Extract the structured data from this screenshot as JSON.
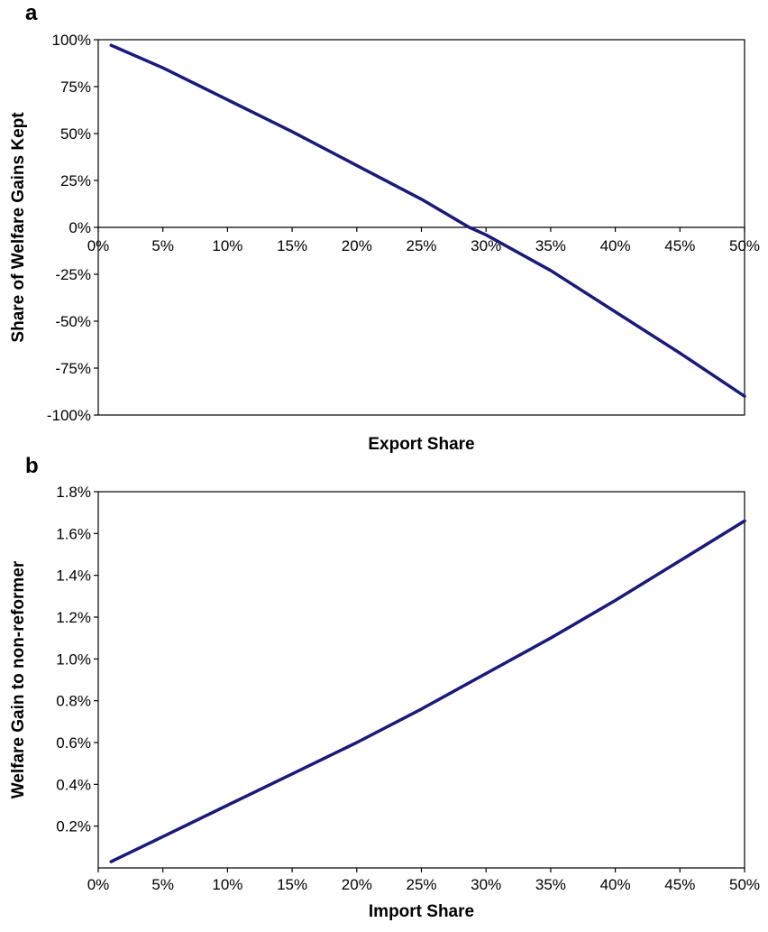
{
  "colors": {
    "series": "#1a1a7a",
    "axis": "#000000",
    "background": "#ffffff"
  },
  "chart_data": [
    {
      "panel_label": "a",
      "type": "line",
      "xlabel": "Export Share",
      "ylabel": "Share of Welfare Gains Kept",
      "xlim": [
        0,
        50
      ],
      "ylim": [
        -100,
        100
      ],
      "x_ticks": [
        0,
        5,
        10,
        15,
        20,
        25,
        30,
        35,
        40,
        45,
        50
      ],
      "x_tick_labels": [
        "0%",
        "5%",
        "10%",
        "15%",
        "20%",
        "25%",
        "30%",
        "35%",
        "40%",
        "45%",
        "50%"
      ],
      "y_ticks": [
        100,
        75,
        50,
        25,
        0,
        -25,
        -50,
        -75,
        -100
      ],
      "y_tick_labels": [
        "100%",
        "75%",
        "50%",
        "25%",
        "0%",
        "-25%",
        "-50%",
        "-75%",
        "-100%"
      ],
      "grid": false,
      "zero_line": true,
      "series": [
        {
          "x": [
            1,
            5,
            10,
            15,
            20,
            25,
            28.7,
            30,
            35,
            40,
            45,
            50
          ],
          "y": [
            97,
            85,
            68,
            51,
            33,
            15,
            0,
            -4,
            -23,
            -45,
            -67,
            -90
          ]
        }
      ]
    },
    {
      "panel_label": "b",
      "type": "line",
      "xlabel": "Import Share",
      "ylabel": "Welfare Gain to non-reformer",
      "xlim": [
        0,
        50
      ],
      "ylim": [
        0,
        1.8
      ],
      "x_ticks": [
        0,
        5,
        10,
        15,
        20,
        25,
        30,
        35,
        40,
        45,
        50
      ],
      "x_tick_labels": [
        "0%",
        "5%",
        "10%",
        "15%",
        "20%",
        "25%",
        "30%",
        "35%",
        "40%",
        "45%",
        "50%"
      ],
      "y_ticks": [
        1.8,
        1.6,
        1.4,
        1.2,
        1.0,
        0.8,
        0.6,
        0.4,
        0.2
      ],
      "y_tick_labels": [
        "1.8%",
        "1.6%",
        "1.4%",
        "1.2%",
        "1.0%",
        "0.8%",
        "0.6%",
        "0.4%",
        "0.2%"
      ],
      "grid": false,
      "zero_line": false,
      "series": [
        {
          "x": [
            1,
            5,
            10,
            15,
            20,
            25,
            30,
            35,
            40,
            45,
            50
          ],
          "y": [
            0.03,
            0.15,
            0.3,
            0.45,
            0.6,
            0.76,
            0.93,
            1.1,
            1.28,
            1.47,
            1.66
          ]
        }
      ]
    }
  ]
}
